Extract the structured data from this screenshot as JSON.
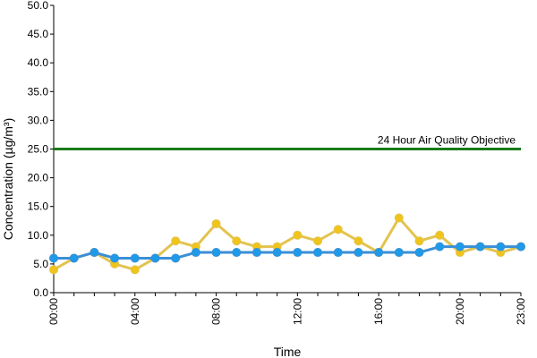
{
  "chart_data": {
    "type": "line",
    "title": "",
    "xlabel": "Time",
    "ylabel": "Concentration (µg/m³)",
    "ylim": [
      0,
      50
    ],
    "y_tick_step": 5,
    "x": [
      0,
      1,
      2,
      3,
      4,
      5,
      6,
      7,
      8,
      9,
      10,
      11,
      12,
      13,
      14,
      15,
      16,
      17,
      18,
      19,
      20,
      21,
      22,
      23
    ],
    "x_tick_labels": [
      {
        "x": 0,
        "label": "00:00"
      },
      {
        "x": 4,
        "label": "04:00"
      },
      {
        "x": 8,
        "label": "08:00"
      },
      {
        "x": 12,
        "label": "12:00"
      },
      {
        "x": 16,
        "label": "16:00"
      },
      {
        "x": 20,
        "label": "20:00"
      },
      {
        "x": 23,
        "label": "23:00"
      }
    ],
    "y_tick_labels": [
      "0.0",
      "5.0",
      "10.0",
      "15.0",
      "20.0",
      "25.0",
      "30.0",
      "35.0",
      "40.0",
      "45.0",
      "50.0"
    ],
    "series": [
      {
        "color": "#f0c419",
        "line_color": "#e3c34f",
        "values": [
          4,
          6,
          7,
          5,
          4,
          6,
          9,
          8,
          12,
          9,
          8,
          8,
          10,
          9,
          11,
          9,
          7,
          13,
          9,
          10,
          7,
          8,
          7,
          8
        ]
      },
      {
        "color": "#1e9be8",
        "line_color": "#3a8fd6",
        "values": [
          6,
          6,
          7,
          6,
          6,
          6,
          6,
          7,
          7,
          7,
          7,
          7,
          7,
          7,
          7,
          7,
          7,
          7,
          7,
          8,
          8,
          8,
          8,
          8
        ]
      }
    ],
    "reference_line": {
      "value": 25,
      "label": "24 Hour Air Quality Objective",
      "color": "#1a7a1a"
    },
    "grid": false,
    "legend": "none"
  }
}
